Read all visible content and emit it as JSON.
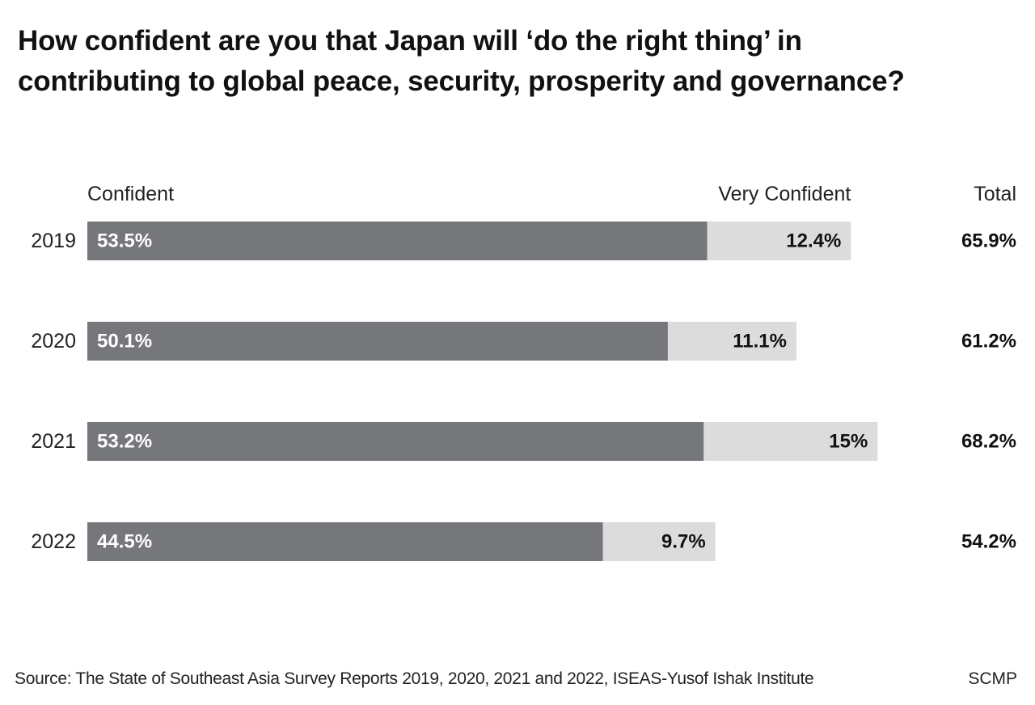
{
  "title_lines": [
    "How confident are you that Japan will ‘do the right thing’ in",
    "contributing to global peace, security, prosperity and governance?"
  ],
  "footer": {
    "source": "Source: The State of Southeast Asia Survey Reports 2019, 2020, 2021 and 2022, ISEAS-Yusof Ishak Institute",
    "brand": "SCMP"
  },
  "colors": {
    "confident": "#76777b",
    "very_confident": "#dcdcdc",
    "text": "#111111",
    "bar_label_light": "#ffffff"
  },
  "chart_data": {
    "type": "bar",
    "orientation": "horizontal",
    "stacked": true,
    "categories": [
      "2019",
      "2020",
      "2021",
      "2022"
    ],
    "series": [
      {
        "name": "Confident",
        "values": [
          53.5,
          50.1,
          53.2,
          44.5
        ],
        "labels": [
          "53.5%",
          "50.1%",
          "53.2%",
          "44.5%"
        ]
      },
      {
        "name": "Very Confident",
        "values": [
          12.4,
          11.1,
          15,
          9.7
        ],
        "labels": [
          "12.4%",
          "11.1%",
          "15%",
          "9.7%"
        ]
      }
    ],
    "totals": {
      "name": "Total",
      "values": [
        65.9,
        61.2,
        68.2,
        54.2
      ],
      "labels": [
        "65.9%",
        "61.2%",
        "68.2%",
        "54.2%"
      ]
    },
    "axes_shown": false,
    "grid": false,
    "legend": "column headers above bars"
  }
}
